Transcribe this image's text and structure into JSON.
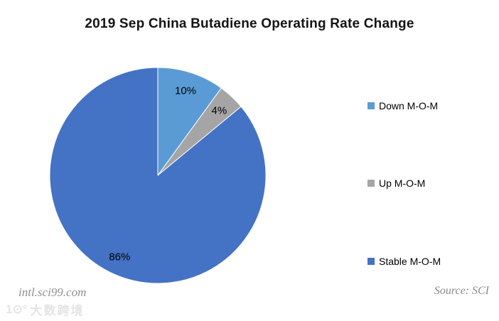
{
  "title": "2019 Sep China Butadiene Operating Rate Change",
  "chart_data": {
    "type": "pie",
    "title": "2019 Sep China Butadiene Operating Rate Change",
    "categories": [
      "Down M-O-M",
      "Up M-O-M",
      "Stable M-O-M"
    ],
    "values": [
      10,
      4,
      86
    ],
    "labels": [
      "10%",
      "4%",
      "86%"
    ],
    "colors": [
      "#5B9BD5",
      "#A5A5A5",
      "#4472C4"
    ],
    "unit": "percent",
    "start_angle_deg": 0,
    "direction": "clockwise",
    "legend_position": "right",
    "data_label_position": "inside"
  },
  "footer": {
    "site_url": "intl.sci99.com",
    "source": "Source: SCI",
    "watermark_logo": "1⊙°",
    "watermark_text": "大数跨境"
  }
}
